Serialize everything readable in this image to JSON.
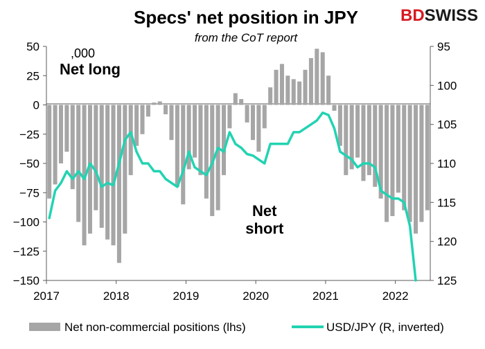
{
  "chart_data": {
    "type": "bar+line",
    "title": "Specs' net position in JPY",
    "subtitle": "from the CoT report",
    "brand": {
      "part1": "BD",
      "part2": "SWISS",
      "color1": "#d71920",
      "color2": "#1a1a1a"
    },
    "unit_label": ",000",
    "annotations": [
      {
        "text": "Net long",
        "x": "2017-08",
        "y": 26
      },
      {
        "text": "Net",
        "x": "2020-02",
        "y": -95
      },
      {
        "text": "short",
        "x": "2020-02",
        "y": -110
      }
    ],
    "x_ticks": [
      "2017",
      "2018",
      "2019",
      "2020",
      "2021",
      "2022"
    ],
    "x_range": [
      "2017-01",
      "2022-06"
    ],
    "y_left": {
      "min": -150,
      "max": 50,
      "ticks": [
        50,
        25,
        0,
        -25,
        -50,
        -75,
        -100,
        -125,
        -150
      ]
    },
    "y_right": {
      "min": 95,
      "max": 125,
      "inverted": true,
      "ticks": [
        95,
        100,
        105,
        110,
        115,
        120,
        125
      ]
    },
    "legend": [
      {
        "label": "Net non-commercial positions (lhs)",
        "type": "bar",
        "color": "#a6a6a6"
      },
      {
        "label": "USD/JPY (R, inverted)",
        "type": "line",
        "color": "#22d3b2"
      }
    ],
    "series": [
      {
        "name": "Net non-commercial positions (lhs)",
        "axis": "left",
        "type": "bar",
        "points": [
          [
            "2017-01",
            -80
          ],
          [
            "2017-02",
            -68
          ],
          [
            "2017-03",
            -50
          ],
          [
            "2017-04",
            -40
          ],
          [
            "2017-05",
            -72
          ],
          [
            "2017-06",
            -100
          ],
          [
            "2017-07",
            -120
          ],
          [
            "2017-08",
            -110
          ],
          [
            "2017-09",
            -90
          ],
          [
            "2017-10",
            -105
          ],
          [
            "2017-11",
            -115
          ],
          [
            "2017-12",
            -120
          ],
          [
            "2018-01",
            -135
          ],
          [
            "2018-02",
            -110
          ],
          [
            "2018-03",
            -60
          ],
          [
            "2018-04",
            -35
          ],
          [
            "2018-05",
            -25
          ],
          [
            "2018-06",
            -10
          ],
          [
            "2018-07",
            2
          ],
          [
            "2018-08",
            3
          ],
          [
            "2018-09",
            -8
          ],
          [
            "2018-10",
            -30
          ],
          [
            "2018-11",
            -70
          ],
          [
            "2018-12",
            -85
          ],
          [
            "2019-01",
            -55
          ],
          [
            "2019-02",
            -45
          ],
          [
            "2019-03",
            -60
          ],
          [
            "2019-04",
            -80
          ],
          [
            "2019-05",
            -95
          ],
          [
            "2019-06",
            -90
          ],
          [
            "2019-07",
            -60
          ],
          [
            "2019-08",
            -20
          ],
          [
            "2019-09",
            10
          ],
          [
            "2019-10",
            5
          ],
          [
            "2019-11",
            -15
          ],
          [
            "2019-12",
            -30
          ],
          [
            "2020-01",
            -40
          ],
          [
            "2020-02",
            -20
          ],
          [
            "2020-03",
            15
          ],
          [
            "2020-04",
            30
          ],
          [
            "2020-05",
            35
          ],
          [
            "2020-06",
            25
          ],
          [
            "2020-07",
            22
          ],
          [
            "2020-08",
            20
          ],
          [
            "2020-09",
            30
          ],
          [
            "2020-10",
            40
          ],
          [
            "2020-11",
            48
          ],
          [
            "2020-12",
            45
          ],
          [
            "2021-01",
            25
          ],
          [
            "2021-02",
            -5
          ],
          [
            "2021-03",
            -35
          ],
          [
            "2021-04",
            -60
          ],
          [
            "2021-05",
            -55
          ],
          [
            "2021-06",
            -45
          ],
          [
            "2021-07",
            -65
          ],
          [
            "2021-08",
            -60
          ],
          [
            "2021-09",
            -70
          ],
          [
            "2021-10",
            -80
          ],
          [
            "2021-11",
            -100
          ],
          [
            "2021-12",
            -95
          ],
          [
            "2022-01",
            -75
          ],
          [
            "2022-02",
            -90
          ],
          [
            "2022-03",
            -100
          ],
          [
            "2022-04",
            -110
          ],
          [
            "2022-05",
            -100
          ],
          [
            "2022-06",
            -90
          ]
        ]
      },
      {
        "name": "USD/JPY (R, inverted)",
        "axis": "right",
        "type": "line",
        "points": [
          [
            "2017-01",
            117.0
          ],
          [
            "2017-02",
            113.5
          ],
          [
            "2017-03",
            112.5
          ],
          [
            "2017-04",
            111.0
          ],
          [
            "2017-05",
            112.0
          ],
          [
            "2017-06",
            111.0
          ],
          [
            "2017-07",
            112.0
          ],
          [
            "2017-08",
            110.0
          ],
          [
            "2017-09",
            111.0
          ],
          [
            "2017-10",
            113.0
          ],
          [
            "2017-11",
            112.5
          ],
          [
            "2017-12",
            112.8
          ],
          [
            "2018-01",
            110.0
          ],
          [
            "2018-02",
            107.0
          ],
          [
            "2018-03",
            106.0
          ],
          [
            "2018-04",
            108.5
          ],
          [
            "2018-05",
            110.0
          ],
          [
            "2018-06",
            110.0
          ],
          [
            "2018-07",
            111.0
          ],
          [
            "2018-08",
            111.0
          ],
          [
            "2018-09",
            112.0
          ],
          [
            "2018-10",
            112.5
          ],
          [
            "2018-11",
            113.0
          ],
          [
            "2018-12",
            111.0
          ],
          [
            "2019-01",
            108.5
          ],
          [
            "2019-02",
            110.5
          ],
          [
            "2019-03",
            111.0
          ],
          [
            "2019-04",
            111.5
          ],
          [
            "2019-05",
            110.0
          ],
          [
            "2019-06",
            108.0
          ],
          [
            "2019-07",
            108.5
          ],
          [
            "2019-08",
            106.0
          ],
          [
            "2019-09",
            107.5
          ],
          [
            "2019-10",
            108.0
          ],
          [
            "2019-11",
            108.8
          ],
          [
            "2019-12",
            109.0
          ],
          [
            "2020-01",
            109.5
          ],
          [
            "2020-02",
            110.0
          ],
          [
            "2020-03",
            107.5
          ],
          [
            "2020-04",
            107.5
          ],
          [
            "2020-05",
            107.5
          ],
          [
            "2020-06",
            107.5
          ],
          [
            "2020-07",
            106.0
          ],
          [
            "2020-08",
            106.0
          ],
          [
            "2020-09",
            105.5
          ],
          [
            "2020-10",
            105.0
          ],
          [
            "2020-11",
            104.5
          ],
          [
            "2020-12",
            103.5
          ],
          [
            "2021-01",
            103.8
          ],
          [
            "2021-02",
            105.5
          ],
          [
            "2021-03",
            108.5
          ],
          [
            "2021-04",
            109.0
          ],
          [
            "2021-05",
            109.5
          ],
          [
            "2021-06",
            110.5
          ],
          [
            "2021-07",
            110.0
          ],
          [
            "2021-08",
            110.0
          ],
          [
            "2021-09",
            110.5
          ],
          [
            "2021-10",
            113.5
          ],
          [
            "2021-11",
            114.0
          ],
          [
            "2021-12",
            114.5
          ],
          [
            "2022-01",
            114.5
          ],
          [
            "2022-02",
            115.0
          ],
          [
            "2022-03",
            118.0
          ],
          [
            "2022-04",
            125.0
          ]
        ]
      }
    ]
  }
}
